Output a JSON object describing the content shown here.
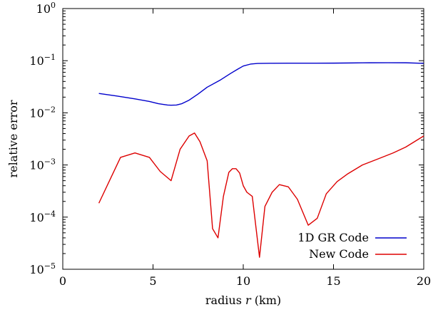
{
  "chart_data": {
    "type": "line",
    "xlabel_prefix": "radius ",
    "xlabel_var": "r",
    "xlabel_suffix": " (km)",
    "ylabel": "relative error",
    "xlim": [
      0,
      20
    ],
    "ylim": [
      1e-05,
      1
    ],
    "yscale": "log",
    "grid": false,
    "legend_position": "bottom-right",
    "x_ticks": [
      0,
      5,
      10,
      15,
      20
    ],
    "x_tick_labels": [
      "0",
      "5",
      "10",
      "15",
      "20"
    ],
    "y_ticks": [
      1e-05,
      0.0001,
      0.001,
      0.01,
      0.1,
      1
    ],
    "y_tick_labels": [
      {
        "base": "10",
        "exp": "−5"
      },
      {
        "base": "10",
        "exp": "−4"
      },
      {
        "base": "10",
        "exp": "−3"
      },
      {
        "base": "10",
        "exp": "−2"
      },
      {
        "base": "10",
        "exp": "−1"
      },
      {
        "base": "10",
        "exp": "0"
      }
    ],
    "series": [
      {
        "name": "1D GR Code",
        "color": "#0000cc",
        "x": [
          2.0,
          3.0,
          4.0,
          4.8,
          5.3,
          5.8,
          6.0,
          6.3,
          6.6,
          7.0,
          7.5,
          8.0,
          8.7,
          9.3,
          9.7,
          10.0,
          10.4,
          10.8,
          11.5,
          12.5,
          14.0,
          15.0,
          16.0,
          17.0,
          18.0,
          19.0,
          20.0
        ],
        "y": [
          0.0235,
          0.021,
          0.0185,
          0.0165,
          0.015,
          0.0141,
          0.014,
          0.0141,
          0.015,
          0.0175,
          0.023,
          0.031,
          0.042,
          0.057,
          0.069,
          0.079,
          0.086,
          0.0885,
          0.0893,
          0.0895,
          0.0896,
          0.0898,
          0.0905,
          0.0912,
          0.0915,
          0.0912,
          0.089
        ]
      },
      {
        "name": "New Code",
        "color": "#dd0000",
        "x": [
          2.0,
          3.2,
          4.0,
          4.8,
          5.4,
          6.0,
          6.5,
          7.0,
          7.3,
          7.6,
          8.0,
          8.3,
          8.6,
          8.9,
          9.2,
          9.4,
          9.6,
          9.8,
          10.0,
          10.2,
          10.5,
          10.9,
          11.2,
          11.6,
          12.0,
          12.5,
          13.0,
          13.6,
          14.1,
          14.6,
          15.2,
          15.8,
          16.6,
          17.4,
          18.3,
          19.0,
          20.0
        ],
        "y": [
          0.000185,
          0.0014,
          0.0017,
          0.0014,
          0.00075,
          0.0005,
          0.002,
          0.0036,
          0.0041,
          0.0028,
          0.0012,
          6e-05,
          4e-05,
          0.00025,
          0.00072,
          0.00085,
          0.00085,
          0.0007,
          0.0004,
          0.0003,
          0.00025,
          1.7e-05,
          0.00016,
          0.0003,
          0.00042,
          0.00038,
          0.00022,
          7e-05,
          9.5e-05,
          0.00028,
          0.00048,
          0.00068,
          0.001,
          0.00128,
          0.0017,
          0.0022,
          0.0036
        ]
      }
    ]
  }
}
